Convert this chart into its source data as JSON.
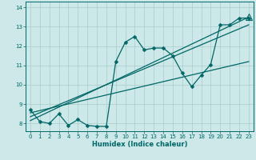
{
  "bg_color": "#cce8e8",
  "grid_color": "#aacccc",
  "line_color": "#006666",
  "xlabel": "Humidex (Indice chaleur)",
  "xlim": [
    -0.5,
    23.5
  ],
  "ylim": [
    7.6,
    14.3
  ],
  "xticks": [
    0,
    1,
    2,
    3,
    4,
    5,
    6,
    7,
    8,
    9,
    10,
    11,
    12,
    13,
    14,
    15,
    16,
    17,
    18,
    19,
    20,
    21,
    22,
    23
  ],
  "yticks": [
    8,
    9,
    10,
    11,
    12,
    13,
    14
  ],
  "curve1_x": [
    0,
    1,
    2,
    3,
    4,
    5,
    6,
    7,
    8,
    9,
    10,
    11,
    12,
    13,
    14,
    15,
    16,
    17,
    18,
    19,
    20,
    21,
    22,
    23
  ],
  "curve1_y": [
    8.7,
    8.1,
    8.0,
    8.5,
    7.9,
    8.2,
    7.9,
    7.85,
    7.85,
    11.2,
    12.2,
    12.5,
    11.8,
    11.9,
    11.9,
    11.5,
    10.6,
    9.9,
    10.5,
    11.05,
    13.1,
    13.1,
    13.45,
    13.45
  ],
  "line1_x": [
    0,
    23
  ],
  "line1_y": [
    8.15,
    13.5
  ],
  "line2_x": [
    0,
    23
  ],
  "line2_y": [
    8.35,
    13.1
  ],
  "line3_x": [
    0,
    23
  ],
  "line3_y": [
    8.55,
    11.2
  ],
  "marker_size": 2.5,
  "linewidth": 0.9
}
